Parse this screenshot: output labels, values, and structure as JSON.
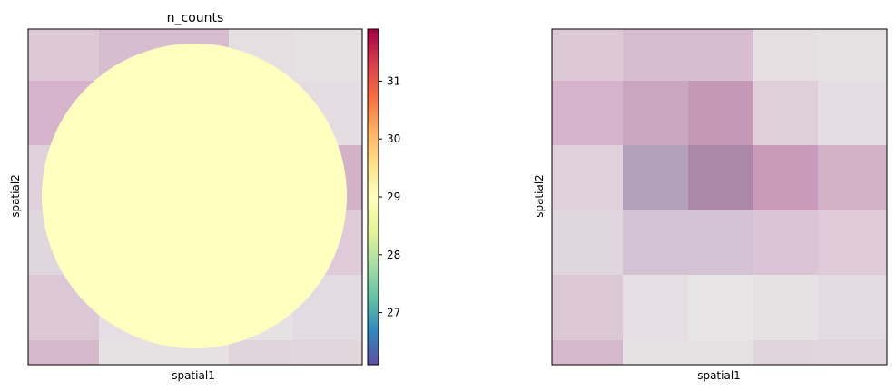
{
  "chart_data": [
    {
      "type": "heatmap",
      "title": "n_counts",
      "xlabel": "spatial1",
      "ylabel": "spatial2",
      "grid": false,
      "tissue_image_rows": [
        [
          "#ddc8d5",
          "#d8bdd0",
          "#d8bdd0",
          "#e6dfe2",
          "#e6e1e2"
        ],
        [
          "#d6b5cc",
          "#caa6c1",
          "#c499b5",
          "#dfcfd9",
          "#e6dde2"
        ],
        [
          "#dfd2dc",
          "#b3a0bb",
          "#ab88a7",
          "#c99bb9",
          "#d3b2c7"
        ],
        [
          "#e0d6dd",
          "#d3c3d4",
          "#d3c3d4",
          "#dbc4d6",
          "#dfcad9"
        ],
        [
          "#dcc7d7",
          "#e6dee3",
          "#e8e5e7",
          "#e6e2e4",
          "#e3dbe2"
        ],
        [
          "#d6b8cd",
          "#e6e1e2",
          "#e6e1e2",
          "#e1d5dc",
          "#e2d6dd"
        ]
      ],
      "spot": {
        "value": 28.98,
        "color": "#ffffbf",
        "shape": "circle"
      },
      "colorbar": {
        "colormap": "Spectral_r",
        "range": [
          26.1,
          31.9
        ],
        "ticks": [
          27,
          28,
          29,
          30,
          31
        ],
        "stops": [
          "#5e4fa2",
          "#3288bd",
          "#66c2a5",
          "#abdda4",
          "#e6f598",
          "#ffffbf",
          "#fee08b",
          "#fdae61",
          "#f46d43",
          "#d53e4f",
          "#9e0142"
        ]
      }
    },
    {
      "type": "heatmap",
      "title": "",
      "xlabel": "spatial1",
      "ylabel": "spatial2",
      "grid": false,
      "tissue_image_rows": [
        [
          "#ddc8d5",
          "#d8bdd0",
          "#d8bdd0",
          "#e6dfe2",
          "#e6e1e2"
        ],
        [
          "#d6b5cc",
          "#caa6c1",
          "#c499b5",
          "#dfcfd9",
          "#e6dde2"
        ],
        [
          "#dfd2dc",
          "#b3a0bb",
          "#ab88a7",
          "#c99bb9",
          "#d3b2c7"
        ],
        [
          "#e0d6dd",
          "#d3c3d4",
          "#d3c3d4",
          "#dbc4d6",
          "#dfcad9"
        ],
        [
          "#dcc7d7",
          "#e6dee3",
          "#e8e5e7",
          "#e6e2e4",
          "#e3dbe2"
        ],
        [
          "#d6b8cd",
          "#e6e1e2",
          "#e6e1e2",
          "#e1d5dc",
          "#e2d6dd"
        ]
      ]
    }
  ]
}
